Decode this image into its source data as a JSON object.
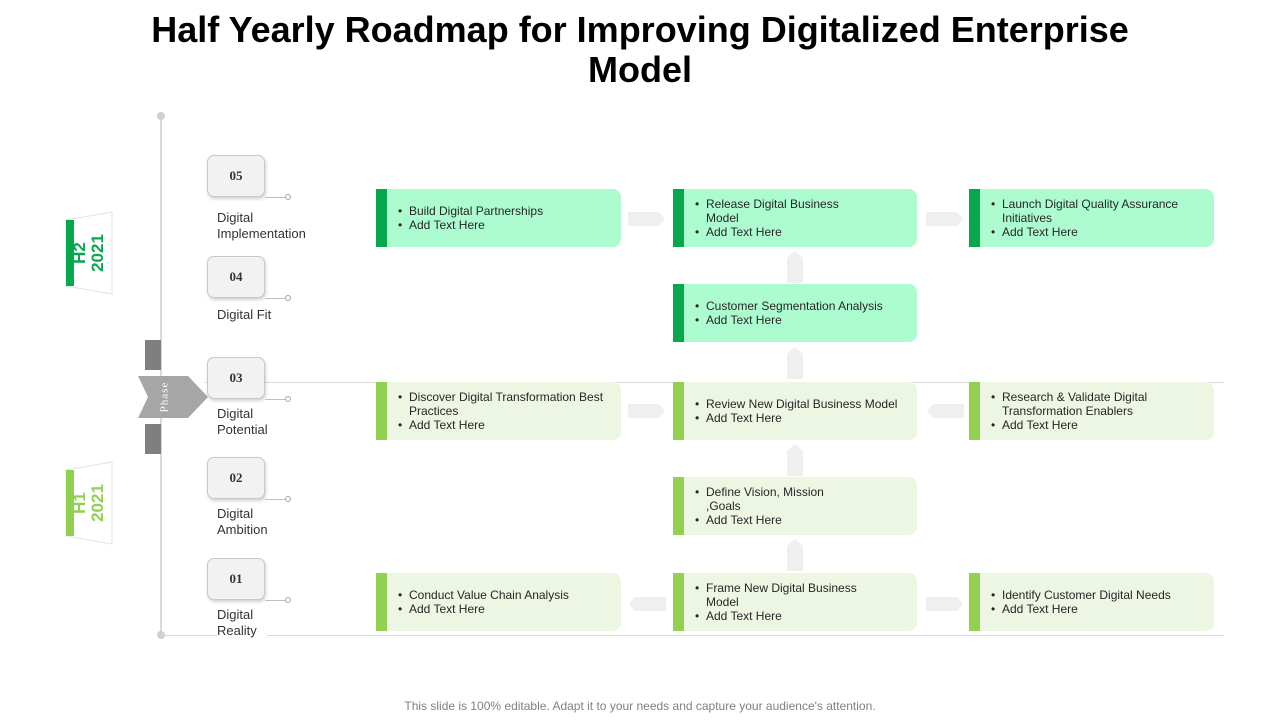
{
  "title": "Half Yearly Roadmap for Improving Digitalized Enterprise Model",
  "phase_label": "Phase",
  "half_years": [
    {
      "half": "H2",
      "year": "2021",
      "color": "#07a84d"
    },
    {
      "half": "H1",
      "year": "2021",
      "color": "#92d050"
    }
  ],
  "steps": [
    {
      "number": "05",
      "label": "Digital Implementation"
    },
    {
      "number": "04",
      "label": "Digital Fit"
    },
    {
      "number": "03",
      "label": "Digital Potential"
    },
    {
      "number": "02",
      "label": "Digital Ambition"
    },
    {
      "number": "01",
      "label": "Digital Reality"
    }
  ],
  "cards": {
    "build_partnerships": [
      "Build Digital Partnerships",
      "Add Text Here"
    ],
    "release_model": [
      "Release Digital Business Model",
      "Add Text Here"
    ],
    "launch_qa": [
      "Launch Digital Quality Assurance Initiatives",
      "Add Text Here"
    ],
    "customer_segmentation": [
      "Customer Segmentation Analysis",
      "Add Text Here"
    ],
    "discover_practices": [
      "Discover Digital Transformation Best Practices",
      "Add Text Here"
    ],
    "review_model": [
      "Review New Digital Business Model",
      "Add Text Here"
    ],
    "research_enablers": [
      "Research & Validate Digital Transformation Enablers",
      "Add Text Here"
    ],
    "define_vision": [
      "Define Vision, Mission ,Goals",
      "Add Text Here"
    ],
    "value_chain": [
      "Conduct Value Chain Analysis",
      "Add Text Here"
    ],
    "frame_model": [
      "Frame New Digital Business Model",
      "Add Text Here"
    ],
    "customer_needs": [
      "Identify Customer Digital Needs",
      "Add Text Here"
    ]
  },
  "colors": {
    "dark_green": "#07a84d",
    "light_green": "#92d050",
    "dark_card_fill": "#adfcd0",
    "light_card_fill": "#edf6e2",
    "phase_gray": "#7f7f7f"
  },
  "footer": "This slide is 100% editable. Adapt it to your needs and capture your audience's attention."
}
